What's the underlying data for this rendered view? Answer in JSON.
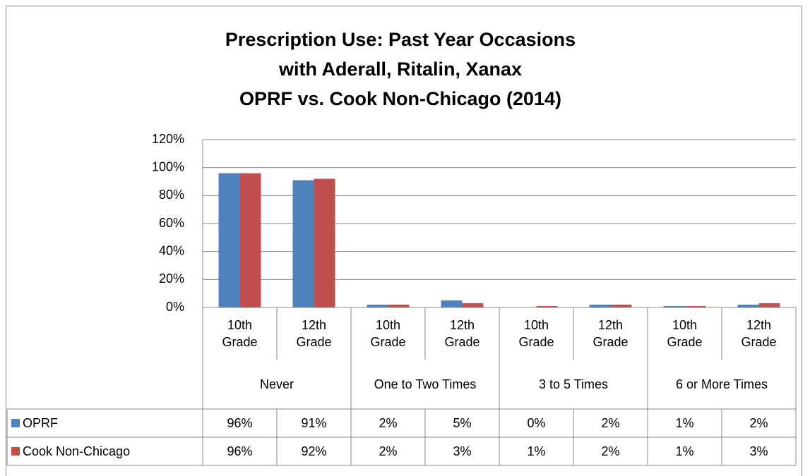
{
  "chart_data": {
    "type": "bar",
    "title": [
      "Prescription Use: Past Year Occasions",
      "with Aderall, Ritalin, Xanax",
      "OPRF vs. Cook Non-Chicago (2014)"
    ],
    "groups": [
      "Never",
      "One to Two Times",
      "3 to 5 Times",
      "6 or More Times"
    ],
    "categories": [
      "10th Grade",
      "12th Grade",
      "10th Grade",
      "12th Grade",
      "10th Grade",
      "12th Grade",
      "10th Grade",
      "12th Grade"
    ],
    "series": [
      {
        "name": "OPRF",
        "color": "#4f81bd",
        "values": [
          96,
          91,
          2,
          5,
          0,
          2,
          1,
          2
        ],
        "value_labels": [
          "96%",
          "91%",
          "2%",
          "5%",
          "0%",
          "2%",
          "1%",
          "2%"
        ]
      },
      {
        "name": "Cook Non-Chicago",
        "color": "#c0504d",
        "values": [
          96,
          92,
          2,
          3,
          1,
          2,
          1,
          3
        ],
        "value_labels": [
          "96%",
          "92%",
          "2%",
          "3%",
          "1%",
          "2%",
          "1%",
          "3%"
        ]
      }
    ],
    "ylim": [
      0,
      120
    ],
    "yticks": [
      {
        "value": 0,
        "label": "0%"
      },
      {
        "value": 20,
        "label": "20%"
      },
      {
        "value": 40,
        "label": "40%"
      },
      {
        "value": 60,
        "label": "60%"
      },
      {
        "value": 80,
        "label": "80%"
      },
      {
        "value": 100,
        "label": "100%"
      },
      {
        "value": 120,
        "label": "120%"
      }
    ],
    "grid": true
  }
}
